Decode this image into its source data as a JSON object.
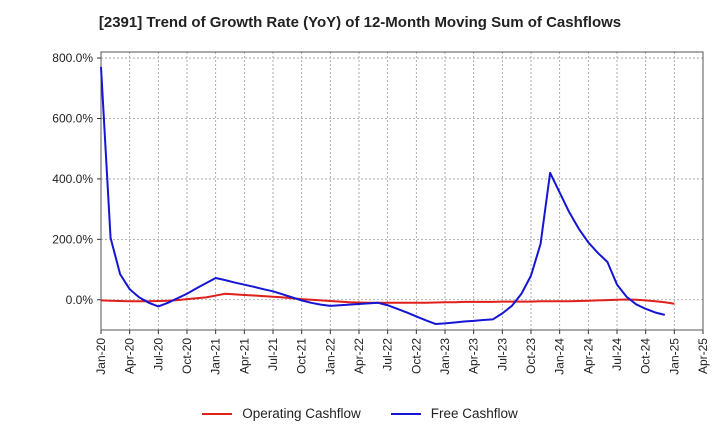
{
  "chart_data": {
    "type": "line",
    "title": "[2391]  Trend of Growth Rate (YoY) of 12-Month Moving Sum of Cashflows",
    "xlabel": "",
    "ylabel": "",
    "ylim": [
      -100,
      820
    ],
    "yticks": [
      {
        "value": 0,
        "label": "0.0%"
      },
      {
        "value": 200,
        "label": "200.0%"
      },
      {
        "value": 400,
        "label": "400.0%"
      },
      {
        "value": 600,
        "label": "600.0%"
      },
      {
        "value": 800,
        "label": "800.0%"
      }
    ],
    "xticks": [
      "Jan-20",
      "Apr-20",
      "Jul-20",
      "Oct-20",
      "Jan-21",
      "Apr-21",
      "Jul-21",
      "Oct-21",
      "Jan-22",
      "Apr-22",
      "Jul-22",
      "Oct-22",
      "Jan-23",
      "Apr-23",
      "Jul-23",
      "Oct-23",
      "Jan-24",
      "Apr-24",
      "Jul-24",
      "Oct-24",
      "Jan-25",
      "Apr-25"
    ],
    "x_unit": "month index from Jan-20",
    "grid": true,
    "legend_position": "bottom",
    "series": [
      {
        "name": "Operating Cashflow",
        "color": "#e0201b",
        "points": [
          [
            0,
            -2
          ],
          [
            1,
            -3
          ],
          [
            2,
            -4
          ],
          [
            3,
            -5
          ],
          [
            4,
            -5
          ],
          [
            5,
            -5
          ],
          [
            6,
            -4
          ],
          [
            7,
            -3
          ],
          [
            8,
            -1
          ],
          [
            9,
            2
          ],
          [
            10,
            5
          ],
          [
            11,
            8
          ],
          [
            12,
            14
          ],
          [
            13,
            20
          ],
          [
            14,
            18
          ],
          [
            15,
            16
          ],
          [
            16,
            14
          ],
          [
            17,
            12
          ],
          [
            18,
            10
          ],
          [
            19,
            8
          ],
          [
            20,
            5
          ],
          [
            21,
            2
          ],
          [
            22,
            0
          ],
          [
            23,
            -2
          ],
          [
            24,
            -4
          ],
          [
            25,
            -6
          ],
          [
            26,
            -8
          ],
          [
            27,
            -9
          ],
          [
            28,
            -10
          ],
          [
            29,
            -10
          ],
          [
            30,
            -10
          ],
          [
            31,
            -10
          ],
          [
            32,
            -10
          ],
          [
            33,
            -10
          ],
          [
            34,
            -10
          ],
          [
            35,
            -9
          ],
          [
            36,
            -8
          ],
          [
            37,
            -8
          ],
          [
            38,
            -7
          ],
          [
            39,
            -7
          ],
          [
            40,
            -7
          ],
          [
            41,
            -7
          ],
          [
            42,
            -6
          ],
          [
            43,
            -6
          ],
          [
            44,
            -6
          ],
          [
            45,
            -6
          ],
          [
            46,
            -5
          ],
          [
            47,
            -5
          ],
          [
            48,
            -5
          ],
          [
            49,
            -5
          ],
          [
            50,
            -4
          ],
          [
            51,
            -3
          ],
          [
            52,
            -2
          ],
          [
            53,
            -1
          ],
          [
            54,
            0
          ],
          [
            55,
            1
          ],
          [
            56,
            0
          ],
          [
            57,
            -2
          ],
          [
            58,
            -5
          ],
          [
            59,
            -8
          ],
          [
            60,
            -13
          ]
        ]
      },
      {
        "name": "Free Cashflow",
        "color": "#1515d4",
        "points": [
          [
            0,
            770
          ],
          [
            1,
            205
          ],
          [
            2,
            85
          ],
          [
            3,
            35
          ],
          [
            4,
            8
          ],
          [
            5,
            -10
          ],
          [
            6,
            -22
          ],
          [
            7,
            -10
          ],
          [
            8,
            5
          ],
          [
            9,
            20
          ],
          [
            10,
            38
          ],
          [
            11,
            55
          ],
          [
            12,
            72
          ],
          [
            13,
            65
          ],
          [
            14,
            57
          ],
          [
            15,
            50
          ],
          [
            16,
            43
          ],
          [
            17,
            35
          ],
          [
            18,
            28
          ],
          [
            19,
            18
          ],
          [
            20,
            8
          ],
          [
            21,
            -2
          ],
          [
            22,
            -10
          ],
          [
            23,
            -16
          ],
          [
            24,
            -20
          ],
          [
            25,
            -18
          ],
          [
            26,
            -16
          ],
          [
            27,
            -14
          ],
          [
            28,
            -12
          ],
          [
            29,
            -10
          ],
          [
            30,
            -18
          ],
          [
            31,
            -30
          ],
          [
            32,
            -42
          ],
          [
            33,
            -55
          ],
          [
            34,
            -68
          ],
          [
            35,
            -80
          ],
          [
            36,
            -78
          ],
          [
            37,
            -75
          ],
          [
            38,
            -72
          ],
          [
            39,
            -70
          ],
          [
            40,
            -67
          ],
          [
            41,
            -65
          ],
          [
            42,
            -45
          ],
          [
            43,
            -20
          ],
          [
            44,
            20
          ],
          [
            45,
            80
          ],
          [
            46,
            185
          ],
          [
            47,
            420
          ],
          [
            48,
            355
          ],
          [
            49,
            290
          ],
          [
            50,
            235
          ],
          [
            51,
            190
          ],
          [
            52,
            155
          ],
          [
            53,
            125
          ],
          [
            54,
            50
          ],
          [
            55,
            10
          ],
          [
            56,
            -15
          ],
          [
            57,
            -30
          ],
          [
            58,
            -42
          ],
          [
            59,
            -50
          ]
        ]
      }
    ]
  }
}
